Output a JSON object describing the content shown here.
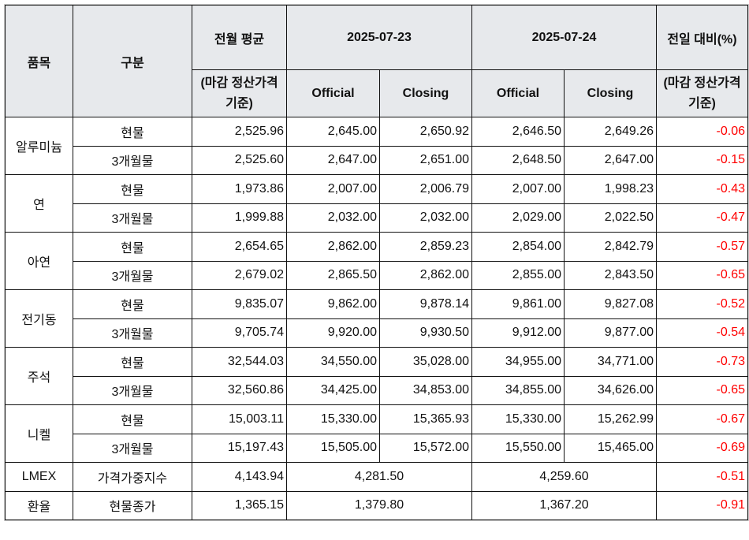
{
  "header": {
    "item": "품목",
    "category": "구분",
    "prev_month_avg": "전월 평균",
    "prev_month_avg_note": "(마감 정산가격 기준)",
    "date1": "2025-07-23",
    "date2": "2025-07-24",
    "daily_change": "전일 대비(%)",
    "daily_change_note": "(마감 정산가격 기준)",
    "official": "Official",
    "closing": "Closing"
  },
  "colors": {
    "negative": "#ff0000",
    "header_bg": "#e7e9ec"
  },
  "metals": [
    {
      "name": "알루미늄",
      "rows": [
        {
          "type": "현물",
          "avg": "2,525.96",
          "d1_official": "2,645.00",
          "d1_closing": "2,650.92",
          "d2_official": "2,646.50",
          "d2_closing": "2,649.26",
          "change": "-0.06"
        },
        {
          "type": "3개월물",
          "avg": "2,525.60",
          "d1_official": "2,647.00",
          "d1_closing": "2,651.00",
          "d2_official": "2,648.50",
          "d2_closing": "2,647.00",
          "change": "-0.15"
        }
      ]
    },
    {
      "name": "연",
      "rows": [
        {
          "type": "현물",
          "avg": "1,973.86",
          "d1_official": "2,007.00",
          "d1_closing": "2,006.79",
          "d2_official": "2,007.00",
          "d2_closing": "1,998.23",
          "change": "-0.43"
        },
        {
          "type": "3개월물",
          "avg": "1,999.88",
          "d1_official": "2,032.00",
          "d1_closing": "2,032.00",
          "d2_official": "2,029.00",
          "d2_closing": "2,022.50",
          "change": "-0.47"
        }
      ]
    },
    {
      "name": "아연",
      "rows": [
        {
          "type": "현물",
          "avg": "2,654.65",
          "d1_official": "2,862.00",
          "d1_closing": "2,859.23",
          "d2_official": "2,854.00",
          "d2_closing": "2,842.79",
          "change": "-0.57"
        },
        {
          "type": "3개월물",
          "avg": "2,679.02",
          "d1_official": "2,865.50",
          "d1_closing": "2,862.00",
          "d2_official": "2,855.00",
          "d2_closing": "2,843.50",
          "change": "-0.65"
        }
      ]
    },
    {
      "name": "전기동",
      "rows": [
        {
          "type": "현물",
          "avg": "9,835.07",
          "d1_official": "9,862.00",
          "d1_closing": "9,878.14",
          "d2_official": "9,861.00",
          "d2_closing": "9,827.08",
          "change": "-0.52"
        },
        {
          "type": "3개월물",
          "avg": "9,705.74",
          "d1_official": "9,920.00",
          "d1_closing": "9,930.50",
          "d2_official": "9,912.00",
          "d2_closing": "9,877.00",
          "change": "-0.54"
        }
      ]
    },
    {
      "name": "주석",
      "rows": [
        {
          "type": "현물",
          "avg": "32,544.03",
          "d1_official": "34,550.00",
          "d1_closing": "35,028.00",
          "d2_official": "34,955.00",
          "d2_closing": "34,771.00",
          "change": "-0.73"
        },
        {
          "type": "3개월물",
          "avg": "32,560.86",
          "d1_official": "34,425.00",
          "d1_closing": "34,853.00",
          "d2_official": "34,855.00",
          "d2_closing": "34,626.00",
          "change": "-0.65"
        }
      ]
    },
    {
      "name": "니켈",
      "rows": [
        {
          "type": "현물",
          "avg": "15,003.11",
          "d1_official": "15,330.00",
          "d1_closing": "15,365.93",
          "d2_official": "15,330.00",
          "d2_closing": "15,262.99",
          "change": "-0.67"
        },
        {
          "type": "3개월물",
          "avg": "15,197.43",
          "d1_official": "15,505.00",
          "d1_closing": "15,572.00",
          "d2_official": "15,550.00",
          "d2_closing": "15,465.00",
          "change": "-0.69"
        }
      ]
    }
  ],
  "singles": [
    {
      "name": "LMEX",
      "type": "가격가중지수",
      "avg": "4,143.94",
      "d1": "4,281.50",
      "d2": "4,259.60",
      "change": "-0.51"
    },
    {
      "name": "환율",
      "type": "현물종가",
      "avg": "1,365.15",
      "d1": "1,379.80",
      "d2": "1,367.20",
      "change": "-0.91"
    }
  ]
}
